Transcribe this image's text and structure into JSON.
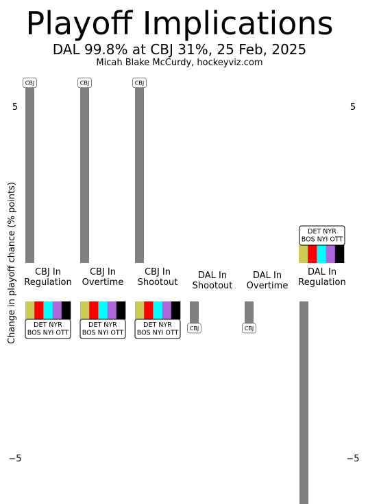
{
  "chart_data": {
    "type": "bar",
    "title": "Playoff Implications",
    "subtitle": "DAL 99.8% at CBJ 31%, 25 Feb, 2025",
    "credit": "Micah Blake McCurdy, hockeyviz.com",
    "ylabel": "Change in playoff chance (% points)",
    "yticks": [
      5,
      -5
    ],
    "ylim": [
      -7.3,
      7.3
    ],
    "grid": false,
    "legend": "none",
    "colors": {
      "bar": "#808080",
      "teams": [
        "#cccc55",
        "#ff0000",
        "#00ffff",
        "#b266dd",
        "#000000"
      ]
    },
    "categories": [
      {
        "label": [
          "CBJ In",
          "Regulation"
        ],
        "main": {
          "team": "CBJ",
          "value": 5.6
        },
        "others": {
          "sign": "down",
          "teams": [
            "DET NYR",
            "BOS NYI OTT"
          ]
        }
      },
      {
        "label": [
          "CBJ In",
          "Overtime"
        ],
        "main": {
          "team": "CBJ",
          "value": 5.6
        },
        "others": {
          "sign": "down",
          "teams": [
            "DET NYR",
            "BOS NYI OTT"
          ]
        }
      },
      {
        "label": [
          "CBJ In",
          "Shootout"
        ],
        "main": {
          "team": "CBJ",
          "value": 5.6
        },
        "others": {
          "sign": "down",
          "teams": [
            "DET NYR",
            "BOS NYI OTT"
          ]
        }
      },
      {
        "label": [
          "DAL In",
          "Shootout"
        ],
        "main": {
          "team": "CBJ",
          "value": -0.7
        },
        "others": null
      },
      {
        "label": [
          "DAL In",
          "Overtime"
        ],
        "main": {
          "team": "CBJ",
          "value": -0.7
        },
        "others": null
      },
      {
        "label": [
          "DAL In",
          "Regulation"
        ],
        "main": {
          "team": "CBJ",
          "value": -6.5
        },
        "others": {
          "sign": "up",
          "teams": [
            "DET NYR",
            "BOS NYI OTT"
          ]
        }
      }
    ]
  }
}
